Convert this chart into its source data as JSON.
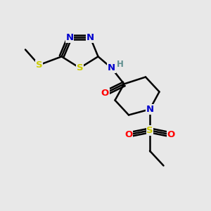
{
  "background_color": "#e8e8e8",
  "figsize": [
    3.0,
    3.0
  ],
  "dpi": 100,
  "colors": {
    "N": "#0000cc",
    "O": "#ff0000",
    "S": "#cccc00",
    "S_ring": "#cccc00",
    "C": "#000000",
    "H": "#5f8f8f",
    "bond": "#000000"
  },
  "bond_lw": 1.8,
  "font_size": 9.5,
  "font_size_H": 8.5
}
